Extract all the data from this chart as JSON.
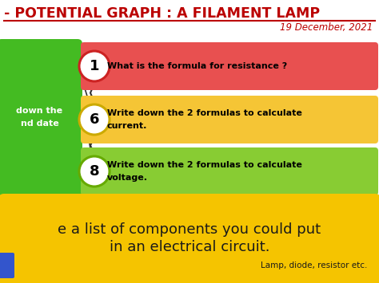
{
  "title": "- POTENTIAL GRAPH : A FILAMENT LAMP",
  "date": "19 December, 2021",
  "title_color": "#bb0000",
  "date_color": "#bb0000",
  "bg_color": "#ffffff",
  "green_box_color": "#44bb22",
  "green_box_text_line1": "down the",
  "green_box_text_line2": "nd date",
  "questions": [
    {
      "number": "1",
      "text": "What is the formula for resistance ?",
      "bar_color": "#e85050",
      "circle_border": "#cc2222",
      "text_color": "#000000",
      "text2": ""
    },
    {
      "number": "6",
      "text": "Write down the 2 formulas to calculate",
      "text2": "current.",
      "bar_color": "#f5c535",
      "circle_border": "#ccaa00",
      "text_color": "#000000"
    },
    {
      "number": "8",
      "text": "Write down the 2 formulas to calculate",
      "text2": "voltage.",
      "bar_color": "#88cc33",
      "circle_border": "#66aa00",
      "text_color": "#000000"
    }
  ],
  "bottom_box_color": "#f5c400",
  "bottom_text_line1": "e a list of components you could put",
  "bottom_text_line2": "in an electrical circuit.",
  "bottom_text_sub": "Lamp, diode, resistor etc.",
  "bottom_box_text_color": "#1a1a1a",
  "blue_tab_color": "#3355cc"
}
